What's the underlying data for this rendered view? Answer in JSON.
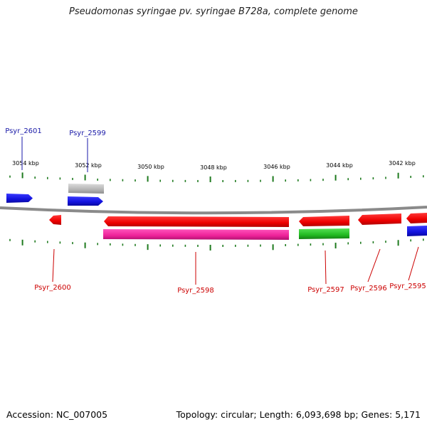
{
  "title": "Pseudomonas syringae pv. syringae B728a, complete genome",
  "footer": {
    "accession": "Accession: NC_007005",
    "topology": "Topology: circular; Length: 6,093,698 bp; Genes: 5,171"
  },
  "colors": {
    "backbone": "#8a8a8a",
    "tick": "#1e7a1e",
    "forward_gene": "#1212dd",
    "reverse_gene": "#ee0000",
    "pseudo_gene": "#b4b4b4",
    "cds_pink": "#ee2299",
    "cds_green": "#22bb22",
    "label_forward": "#1a1aa8",
    "label_reverse": "#cc0000"
  },
  "scale_labels": [
    "3054 kbp",
    "3052 kbp",
    "3050 kbp",
    "3048 kbp",
    "3046 kbp",
    "3044 kbp",
    "3042 kbp"
  ],
  "gene_labels_top": [
    "Psyr_2601",
    "Psyr_2599"
  ],
  "gene_labels_bottom": [
    "Psyr_2600",
    "Psyr_2598",
    "Psyr_2597",
    "Psyr_2596",
    "Psyr_2595"
  ]
}
